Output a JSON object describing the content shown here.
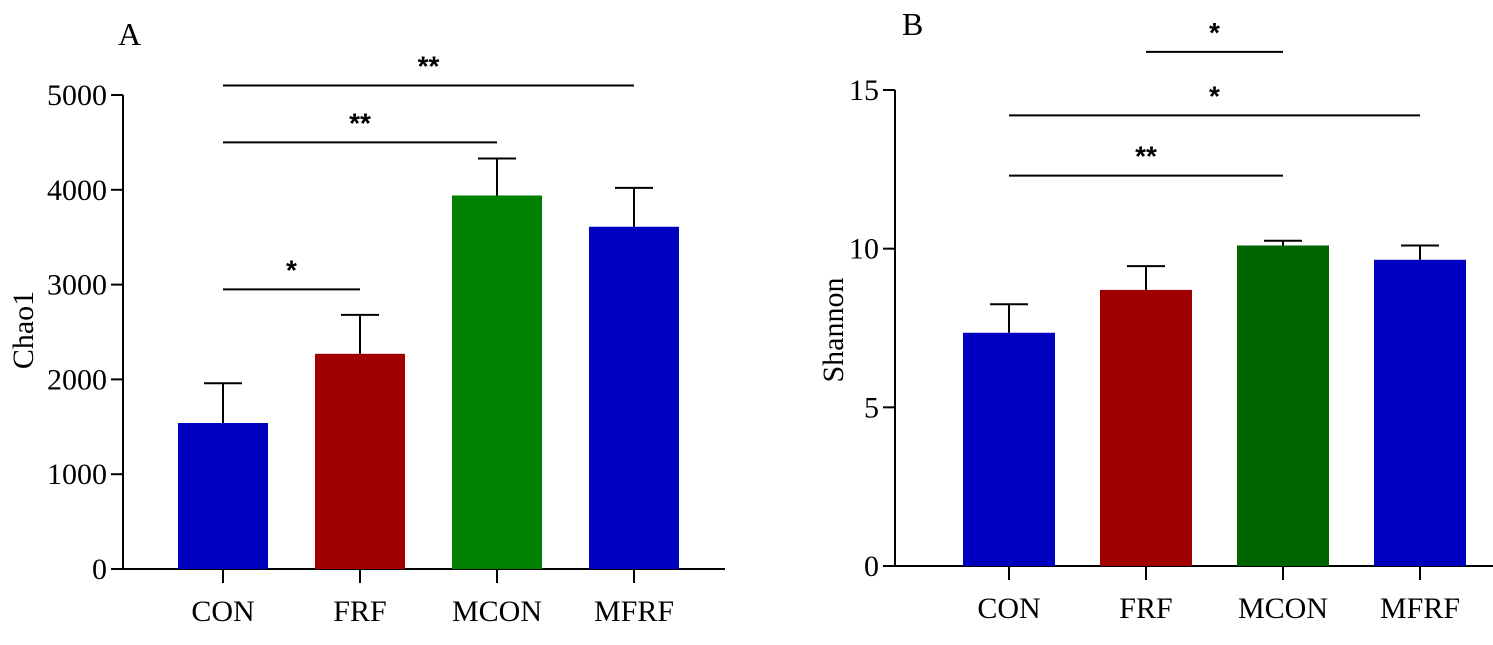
{
  "chart_data": [
    {
      "type": "bar",
      "panel_label": "A",
      "title": "",
      "xlabel": "",
      "ylabel": "Chao1",
      "categories": [
        "CON",
        "FRF",
        "MCON",
        "MFRF"
      ],
      "values": [
        1540,
        2270,
        3940,
        3610
      ],
      "errors": [
        420,
        410,
        390,
        410
      ],
      "colors": [
        "#0000c0",
        "#a00000",
        "#008000",
        "#0000c0"
      ],
      "ylim": [
        0,
        5000
      ],
      "yticks": [
        0,
        1000,
        2000,
        3000,
        4000,
        5000
      ],
      "yticklabels": [
        "0",
        "1000",
        "2000",
        "3000",
        "4000",
        "5000"
      ],
      "grid": false,
      "significance": [
        {
          "from": 0,
          "to": 1,
          "y": 2950,
          "label": "*"
        },
        {
          "from": 0,
          "to": 2,
          "y": 4500,
          "label": "**"
        },
        {
          "from": 0,
          "to": 3,
          "y": 5100,
          "label": "**"
        }
      ]
    },
    {
      "type": "bar",
      "panel_label": "B",
      "title": "",
      "xlabel": "",
      "ylabel": "Shannon",
      "categories": [
        "CON",
        "FRF",
        "MCON",
        "MFRF"
      ],
      "values": [
        7.35,
        8.7,
        10.1,
        9.65
      ],
      "errors": [
        0.9,
        0.75,
        0.15,
        0.45
      ],
      "colors": [
        "#0000c0",
        "#a00000",
        "#006400",
        "#0000c0"
      ],
      "ylim": [
        0,
        15
      ],
      "yticks": [
        0,
        5,
        10,
        15
      ],
      "yticklabels": [
        "0",
        "5",
        "10",
        "15"
      ],
      "grid": false,
      "significance": [
        {
          "from": 0,
          "to": 2,
          "y": 12.3,
          "label": "**"
        },
        {
          "from": 0,
          "to": 3,
          "y": 14.2,
          "label": "*"
        },
        {
          "from": 1,
          "to": 2,
          "y": 16.2,
          "label": "*"
        }
      ]
    }
  ]
}
